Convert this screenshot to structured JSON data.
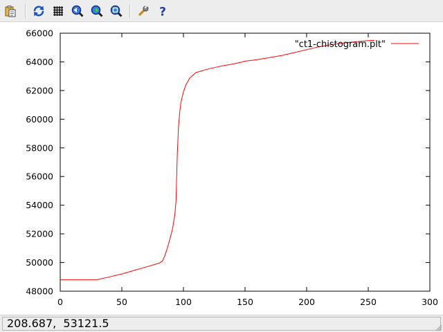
{
  "toolbar": {
    "buttons": [
      {
        "name": "copy-to-clipboard-button",
        "icon": "clipboard-icon"
      },
      {
        "name": "replot-button",
        "icon": "replot-icon"
      },
      {
        "name": "grid-button",
        "icon": "grid-icon"
      },
      {
        "name": "previous-zoom-button",
        "icon": "zoom-previous-icon"
      },
      {
        "name": "next-zoom-button",
        "icon": "zoom-next-icon"
      },
      {
        "name": "autoscale-button",
        "icon": "zoom-autoscale-icon"
      },
      {
        "name": "settings-button",
        "icon": "wrench-icon"
      },
      {
        "name": "help-button",
        "icon": "help-icon"
      }
    ]
  },
  "status": {
    "coordinates": "208.687,  53121.5"
  },
  "colors": {
    "series": "#ff0000",
    "axis": "#000000"
  },
  "chart_data": {
    "type": "line",
    "title": "",
    "xlabel": "",
    "ylabel": "",
    "xlim": [
      0,
      300
    ],
    "ylim": [
      48000,
      66000
    ],
    "xticks": [
      0,
      50,
      100,
      150,
      200,
      250,
      300
    ],
    "yticks": [
      48000,
      50000,
      52000,
      54000,
      56000,
      58000,
      60000,
      62000,
      64000,
      66000
    ],
    "grid": false,
    "legend": "top-right",
    "series": [
      {
        "name": "\"ct1-chistogram.plt\"",
        "x": [
          0,
          30,
          40,
          50,
          60,
          70,
          80,
          83,
          85,
          88,
          91,
          93,
          94,
          95,
          96,
          97,
          98,
          100,
          102,
          105,
          110,
          120,
          130,
          140,
          147,
          150,
          160,
          170,
          180,
          190,
          200,
          210,
          220,
          230,
          240,
          250,
          255
        ],
        "y": [
          48800,
          48800,
          49000,
          49200,
          49450,
          49700,
          49950,
          50100,
          50500,
          51300,
          52300,
          53300,
          54300,
          57500,
          59500,
          60500,
          61200,
          61900,
          62400,
          62850,
          63250,
          63500,
          63700,
          63850,
          63980,
          64050,
          64150,
          64300,
          64450,
          64650,
          64850,
          65050,
          65200,
          65320,
          65400,
          65480,
          65500
        ]
      }
    ]
  }
}
